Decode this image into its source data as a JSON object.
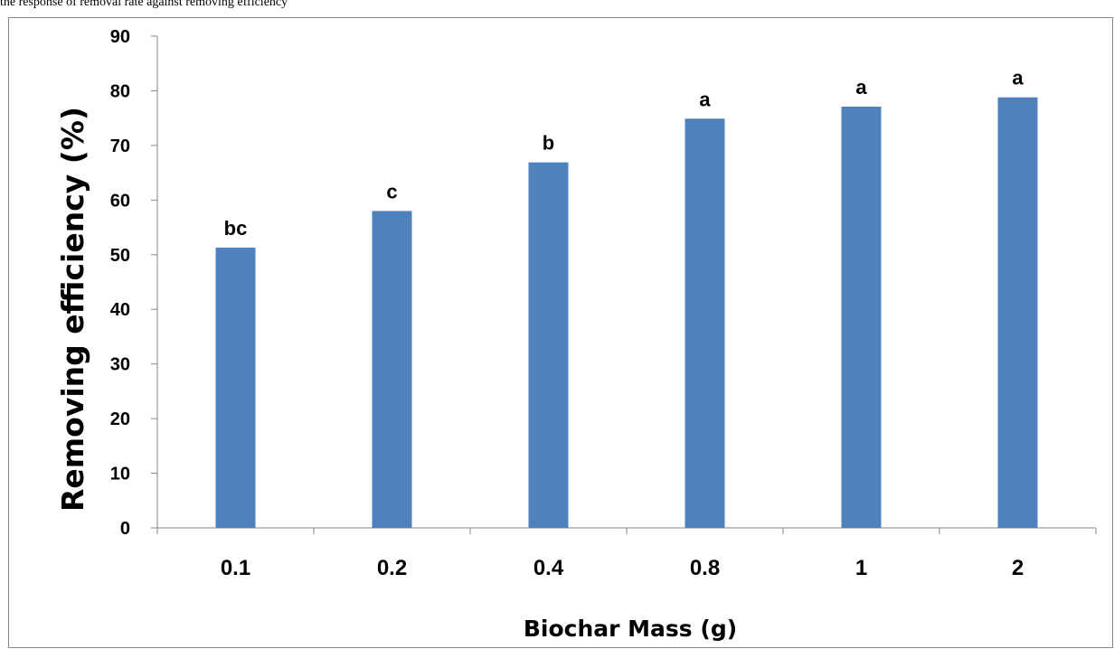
{
  "page": {
    "caption": "the response of removal rate against removing efficiency"
  },
  "chart_data": {
    "type": "bar",
    "categories": [
      "0.1",
      "0.2",
      "0.4",
      "0.8",
      "1",
      "2"
    ],
    "values": [
      51.3,
      58.0,
      66.9,
      74.9,
      77.1,
      78.8
    ],
    "annotations": [
      "bc",
      "c",
      "b",
      "a",
      "a",
      "a"
    ],
    "title": "",
    "xlabel": "Biochar Mass (g)",
    "ylabel": "Removing efficiency (%)",
    "ylim": [
      0,
      90
    ],
    "yticks": [
      0,
      10,
      20,
      30,
      40,
      50,
      60,
      70,
      80,
      90
    ],
    "grid": false,
    "legend": "none",
    "bar_color": "#4F81BD",
    "axis_color": "#868686"
  }
}
